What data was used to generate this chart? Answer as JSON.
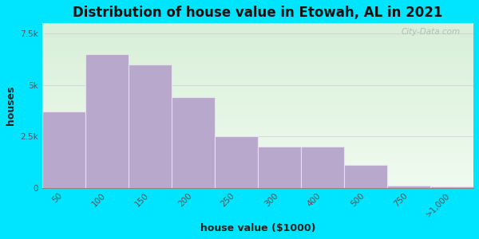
{
  "title": "Distribution of house value in Etowah, AL in 2021",
  "xlabel": "house value ($1000)",
  "ylabel": "houses",
  "categories": [
    "50",
    "100",
    "150",
    "200",
    "250",
    "300",
    "400",
    "500",
    "750",
    ">1,000"
  ],
  "values": [
    3700,
    6500,
    6000,
    4400,
    2500,
    2000,
    2000,
    1100,
    100,
    50
  ],
  "bar_color": "#b8a8cc",
  "bar_edge_color": "#e8e0f0",
  "ylim": [
    0,
    8000
  ],
  "yticks": [
    0,
    2500,
    5000,
    7500
  ],
  "ytick_labels": [
    "0",
    "2.5k",
    "5k",
    "7.5k"
  ],
  "background_outer": "#00e5ff",
  "background_inner_top_color": "#d8efd8",
  "background_inner_bottom_color": "#f0fbf0",
  "title_fontsize": 12,
  "axis_label_fontsize": 9,
  "tick_fontsize": 7.5,
  "watermark_text": "City-Data.com",
  "figsize": [
    6.0,
    3.0
  ],
  "dpi": 100
}
